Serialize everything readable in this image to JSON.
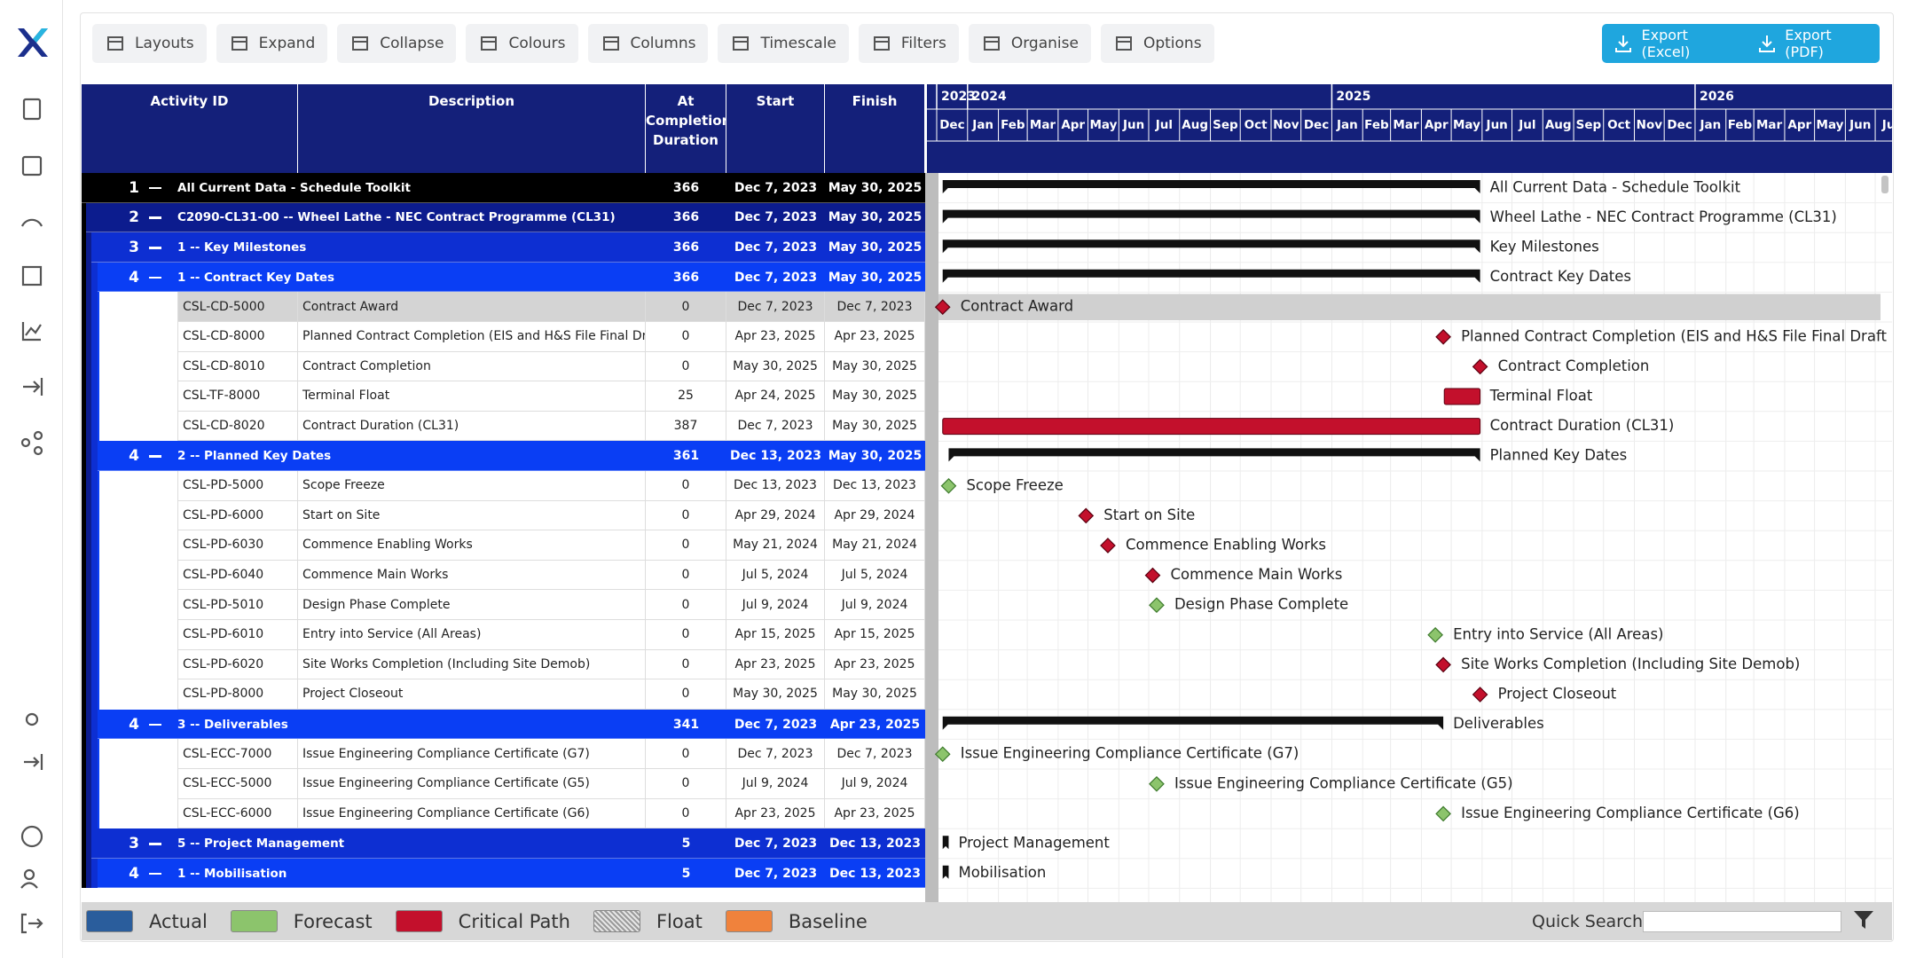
{
  "toolbar": {
    "buttons": [
      "Layouts",
      "Expand",
      "Collapse",
      "Colours",
      "Columns",
      "Timescale",
      "Filters",
      "Organise",
      "Options"
    ],
    "exports": [
      "Export (Excel)",
      "Export (PDF)"
    ]
  },
  "table": {
    "columns": [
      "Activity ID",
      "Description",
      "At Completion Duration",
      "Start",
      "Finish"
    ],
    "row_colors": [
      "#000000",
      "#0c1c8e",
      "#0d2fd2",
      "#0a3ef4"
    ],
    "selected_row": 4,
    "rows": [
      {
        "level": 1,
        "description": "All Current Data - Schedule Toolkit",
        "duration": 366,
        "start": "Dec 7, 2023",
        "finish": "May 30, 2025",
        "gantt_label": "All Current Data - Schedule Toolkit"
      },
      {
        "level": 2,
        "description": "C2090-CL31-00 -- Wheel Lathe - NEC Contract Programme (CL31)",
        "duration": 366,
        "start": "Dec 7, 2023",
        "finish": "May 30, 2025",
        "gantt_label": "Wheel Lathe - NEC Contract Programme (CL31)"
      },
      {
        "level": 3,
        "description": "1 -- Key Milestones",
        "duration": 366,
        "start": "Dec 7, 2023",
        "finish": "May 30, 2025",
        "gantt_label": "Key Milestones"
      },
      {
        "level": 4,
        "description": "1 -- Contract Key Dates",
        "duration": 366,
        "start": "Dec 7, 2023",
        "finish": "May 30, 2025",
        "gantt_label": "Contract Key Dates"
      },
      {
        "id": "CSL-CD-5000",
        "description": "Contract Award",
        "duration": 0,
        "start": "Dec 7, 2023",
        "finish": "Dec 7, 2023",
        "critical": true
      },
      {
        "id": "CSL-CD-8000",
        "description": "Planned Contract Completion (EIS and H&S File Final Draft Issue",
        "duration": 0,
        "start": "Apr 23, 2025",
        "finish": "Apr 23, 2025",
        "critical": true
      },
      {
        "id": "CSL-CD-8010",
        "description": "Contract Completion",
        "duration": 0,
        "start": "May 30, 2025",
        "finish": "May 30, 2025",
        "critical": true
      },
      {
        "id": "CSL-TF-8000",
        "description": "Terminal Float",
        "duration": 25,
        "start": "Apr 24, 2025",
        "finish": "May 30, 2025",
        "critical": true
      },
      {
        "id": "CSL-CD-8020",
        "description": "Contract Duration (CL31)",
        "duration": 387,
        "start": "Dec 7, 2023",
        "finish": "May 30, 2025",
        "critical": true
      },
      {
        "level": 4,
        "description": "2 -- Planned Key Dates",
        "duration": 361,
        "start": "Dec 13, 2023",
        "finish": "May 30, 2025",
        "gantt_label": "Planned Key Dates"
      },
      {
        "id": "CSL-PD-5000",
        "description": "Scope Freeze",
        "duration": 0,
        "start": "Dec 13, 2023",
        "finish": "Dec 13, 2023",
        "critical": false
      },
      {
        "id": "CSL-PD-6000",
        "description": "Start on Site",
        "duration": 0,
        "start": "Apr 29, 2024",
        "finish": "Apr 29, 2024",
        "critical": true
      },
      {
        "id": "CSL-PD-6030",
        "description": "Commence Enabling Works",
        "duration": 0,
        "start": "May 21, 2024",
        "finish": "May 21, 2024",
        "critical": true
      },
      {
        "id": "CSL-PD-6040",
        "description": "Commence Main Works",
        "duration": 0,
        "start": "Jul 5, 2024",
        "finish": "Jul 5, 2024",
        "critical": true
      },
      {
        "id": "CSL-PD-5010",
        "description": "Design Phase Complete",
        "duration": 0,
        "start": "Jul 9, 2024",
        "finish": "Jul 9, 2024",
        "critical": false
      },
      {
        "id": "CSL-PD-6010",
        "description": "Entry into Service (All Areas)",
        "duration": 0,
        "start": "Apr 15, 2025",
        "finish": "Apr 15, 2025",
        "critical": false
      },
      {
        "id": "CSL-PD-6020",
        "description": "Site Works Completion (Including Site Demob)",
        "duration": 0,
        "start": "Apr 23, 2025",
        "finish": "Apr 23, 2025",
        "critical": true
      },
      {
        "id": "CSL-PD-8000",
        "description": "Project Closeout",
        "duration": 0,
        "start": "May 30, 2025",
        "finish": "May 30, 2025",
        "critical": true
      },
      {
        "level": 4,
        "description": "3 -- Deliverables",
        "duration": 341,
        "start": "Dec 7, 2023",
        "finish": "Apr 23, 2025",
        "gantt_label": "Deliverables"
      },
      {
        "id": "CSL-ECC-7000",
        "description": "Issue Engineering Compliance Certificate (G7)",
        "duration": 0,
        "start": "Dec 7, 2023",
        "finish": "Dec 7, 2023",
        "critical": false
      },
      {
        "id": "CSL-ECC-5000",
        "description": "Issue Engineering Compliance Certificate (G5)",
        "duration": 0,
        "start": "Jul 9, 2024",
        "finish": "Jul 9, 2024",
        "critical": false
      },
      {
        "id": "CSL-ECC-6000",
        "description": "Issue Engineering Compliance Certificate (G6)",
        "duration": 0,
        "start": "Apr 23, 2025",
        "finish": "Apr 23, 2025",
        "critical": false
      },
      {
        "level": 3,
        "description": "5 -- Project Management",
        "duration": 5,
        "start": "Dec 7, 2023",
        "finish": "Dec 13, 2023",
        "gantt_label": "Project Management"
      },
      {
        "level": 4,
        "description": "1 -- Mobilisation",
        "duration": 5,
        "start": "Dec 7, 2023",
        "finish": "Dec 13, 2023",
        "gantt_label": "Mobilisation"
      }
    ]
  },
  "timeline": {
    "years": [
      "2023",
      "2024",
      "2025",
      "2026"
    ],
    "months": [
      "Dec",
      "Jan",
      "Feb",
      "Mar",
      "Apr",
      "May",
      "Jun",
      "Jul",
      "Aug",
      "Sep",
      "Oct",
      "Nov",
      "Dec",
      "Jan",
      "Feb",
      "Mar",
      "Apr",
      "May",
      "Jun",
      "Jul",
      "Aug",
      "Sep",
      "Oct",
      "Nov",
      "Dec",
      "Jan",
      "Feb",
      "Mar",
      "Apr",
      "May",
      "Jun",
      "Jul"
    ]
  },
  "legend": {
    "items": [
      {
        "label": "Actual",
        "color": "#2a5d9c"
      },
      {
        "label": "Forecast",
        "color": "#8cc46c"
      },
      {
        "label": "Critical Path",
        "color": "#c3102c"
      },
      {
        "label": "Float",
        "color": "#9a9a9a",
        "pattern": "hatched"
      },
      {
        "label": "Baseline",
        "color": "#f0823c"
      }
    ]
  },
  "search": {
    "label": "Quick Search"
  }
}
